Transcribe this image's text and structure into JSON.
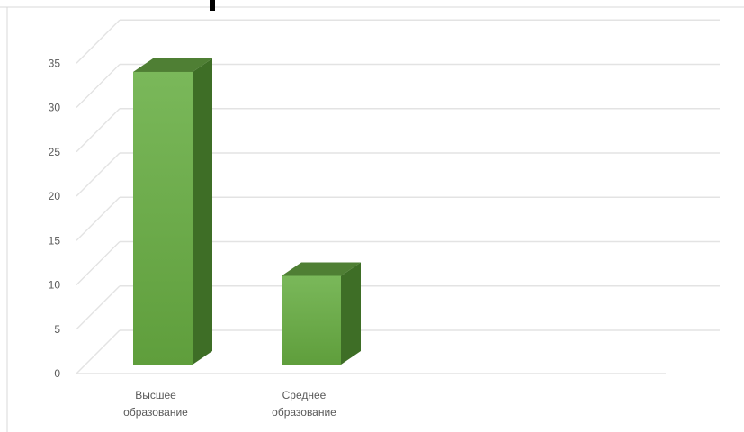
{
  "chart_data": {
    "type": "bar",
    "categories": [
      "Высшее образование",
      "Среднее образование"
    ],
    "category_label_lines": [
      [
        "Высшее",
        "образование"
      ],
      [
        "Среднее",
        "образование"
      ]
    ],
    "values": [
      33,
      10
    ],
    "ylim": [
      0,
      35
    ],
    "y_ticks": [
      0,
      5,
      10,
      15,
      20,
      25,
      30,
      35
    ],
    "y_tick_labels": [
      "0",
      "5",
      "10",
      "15",
      "20",
      "25",
      "30",
      "35"
    ],
    "grid": true,
    "style_3d": true,
    "colors": {
      "bar_front_top": "#7ab85a",
      "bar_front_bottom": "#5f9e3c",
      "bar_top": "#4f7f34",
      "bar_side": "#3e6e26",
      "gridline": "#e3e3e3",
      "axis_text": "#595959"
    }
  }
}
